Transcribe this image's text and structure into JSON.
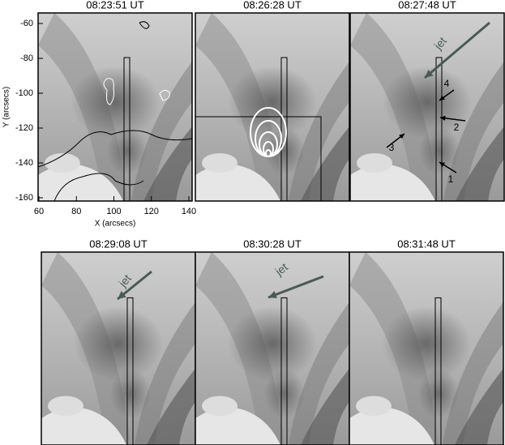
{
  "panels": [
    {
      "time": "08:23:51 UT"
    },
    {
      "time": "08:26:28 UT"
    },
    {
      "time": "08:27:48 UT",
      "annotations": [
        "jet",
        "4",
        "2",
        "3",
        "1"
      ]
    },
    {
      "time": "08:29:08 UT",
      "annotations": [
        "jet"
      ]
    },
    {
      "time": "08:30:28 UT",
      "annotations": [
        "jet"
      ]
    },
    {
      "time": "08:31:48 UT"
    }
  ],
  "axes": {
    "xlabel": "X (arcsecs)",
    "ylabel": "Y (arcsecs)",
    "xticks": [
      60,
      80,
      100,
      120,
      140
    ],
    "yticks": [
      -60,
      -80,
      -100,
      -120,
      -140,
      -160
    ]
  }
}
